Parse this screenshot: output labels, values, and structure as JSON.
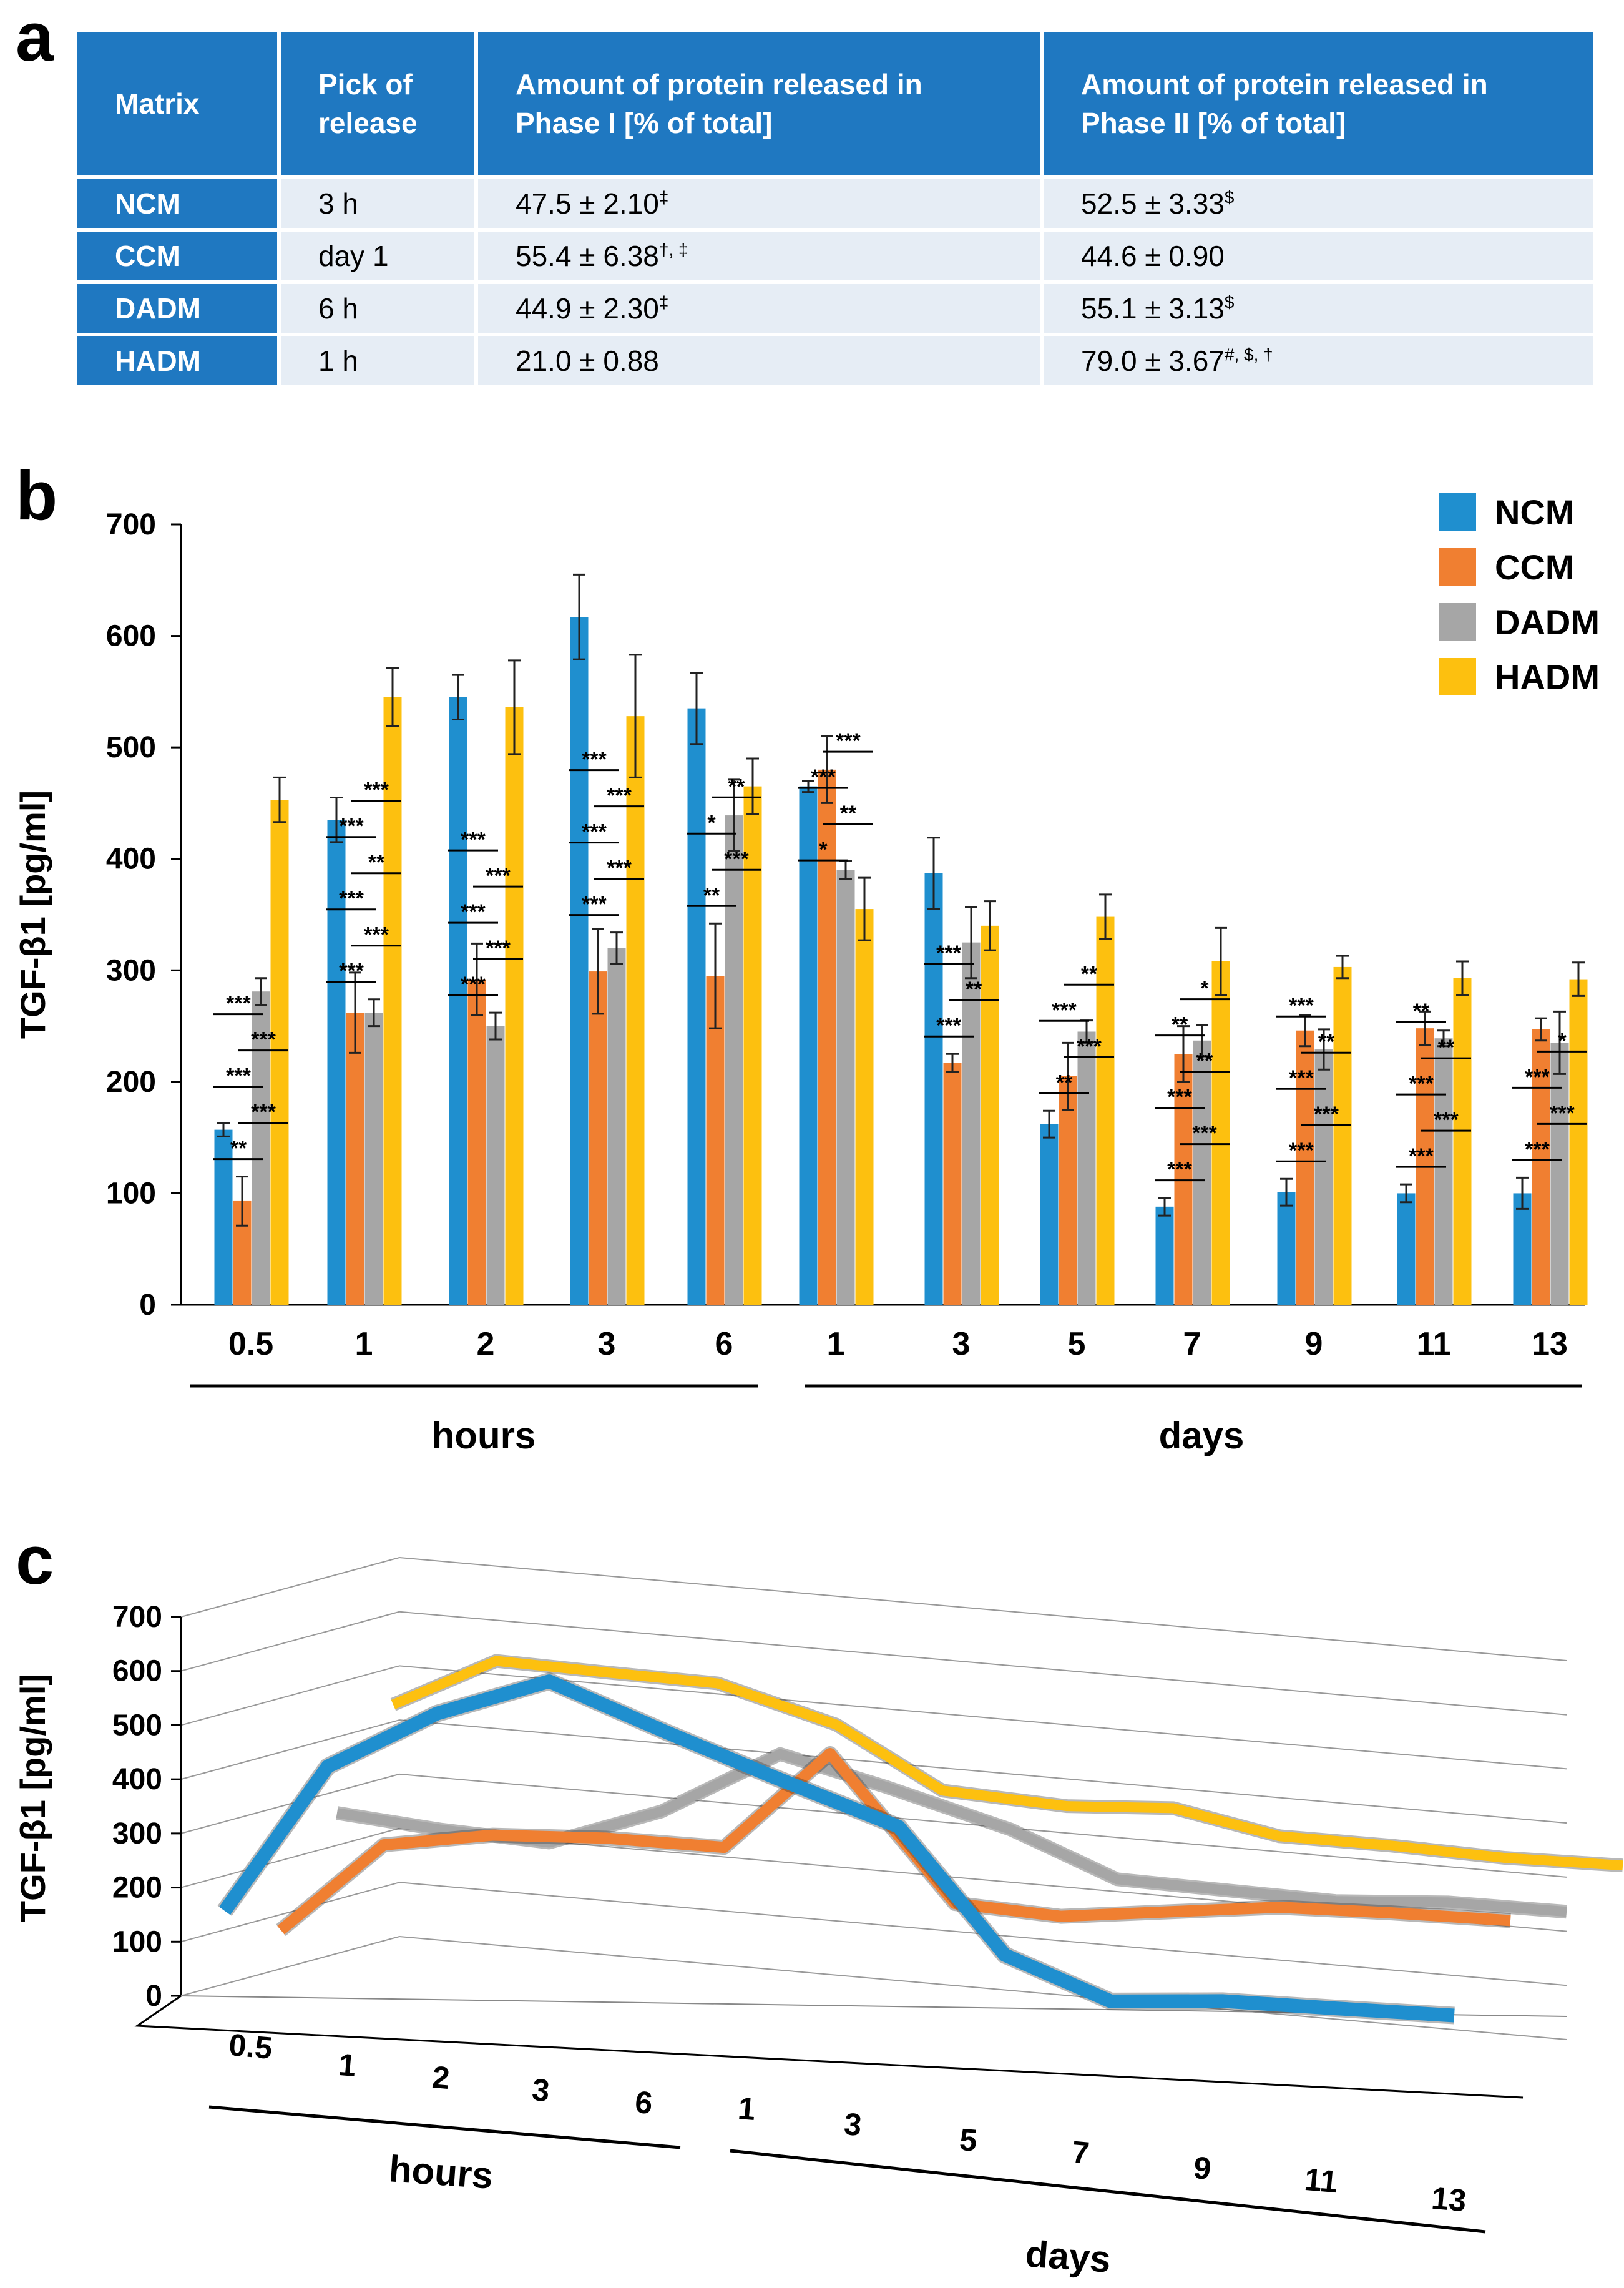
{
  "panels": {
    "a": "a",
    "b": "b",
    "c": "c"
  },
  "table": {
    "headers": [
      "Matrix",
      "Pick of\nrelease",
      "Amount of protein released in\nPhase I [% of total]",
      "Amount of protein released in\nPhase II [% of total]"
    ],
    "rows": [
      {
        "matrix": "NCM",
        "peak": "3 h",
        "phase1": "47.5 ± 2.10",
        "phase1_sup": "‡",
        "phase2": "52.5 ± 3.33",
        "phase2_sup": "$"
      },
      {
        "matrix": "CCM",
        "peak": "day 1",
        "phase1": "55.4 ± 6.38",
        "phase1_sup": "†, ‡",
        "phase2": "44.6 ± 0.90",
        "phase2_sup": ""
      },
      {
        "matrix": "DADM",
        "peak": "6 h",
        "phase1": "44.9 ± 2.30",
        "phase1_sup": "‡",
        "phase2": "55.1 ± 3.13",
        "phase2_sup": "$"
      },
      {
        "matrix": "HADM",
        "peak": "1 h",
        "phase1": "21.0 ± 0.88",
        "phase1_sup": "",
        "phase2": "79.0 ± 3.67",
        "phase2_sup": "#, $, †"
      }
    ]
  },
  "chart_data": [
    {
      "type": "bar",
      "ylabel": "TGF-β1 [pg/ml]",
      "ylim": [
        0,
        700
      ],
      "yticks": [
        0,
        100,
        200,
        300,
        400,
        500,
        600,
        700
      ],
      "categories": [
        "0.5",
        "1",
        "2",
        "3",
        "6",
        "1",
        "3",
        "5",
        "7",
        "9",
        "11",
        "13"
      ],
      "group_labels": [
        "hours",
        "days"
      ],
      "legend_position": "top-right",
      "series": [
        {
          "name": "NCM",
          "color": "#1f8fcf",
          "values": [
            157,
            435,
            545,
            617,
            535,
            465,
            387,
            162,
            88,
            101,
            100,
            100
          ],
          "errors": [
            6,
            20,
            20,
            38,
            32,
            5,
            32,
            12,
            8,
            12,
            8,
            14
          ]
        },
        {
          "name": "CCM",
          "color": "#f07f31",
          "values": [
            93,
            262,
            292,
            299,
            295,
            480,
            217,
            205,
            225,
            246,
            248,
            247
          ],
          "errors": [
            22,
            36,
            32,
            38,
            47,
            30,
            8,
            30,
            25,
            14,
            15,
            10
          ]
        },
        {
          "name": "DADM",
          "color": "#a6a6a6",
          "values": [
            281,
            262,
            250,
            320,
            439,
            390,
            325,
            245,
            237,
            229,
            239,
            235
          ],
          "errors": [
            12,
            12,
            12,
            14,
            32,
            8,
            32,
            10,
            14,
            18,
            7,
            28
          ]
        },
        {
          "name": "HADM",
          "color": "#fdc00f",
          "values": [
            453,
            545,
            536,
            528,
            465,
            355,
            340,
            348,
            308,
            303,
            293,
            292
          ],
          "errors": [
            20,
            26,
            42,
            55,
            25,
            28,
            22,
            20,
            30,
            10,
            15,
            15
          ]
        }
      ],
      "significance": [
        [
          "**",
          "***",
          "***",
          "***",
          "***"
        ],
        [
          "***",
          "***",
          "***",
          "**",
          "***",
          "***"
        ],
        [
          "***",
          "***",
          "***",
          "***",
          "***"
        ],
        [
          "***",
          "***",
          "***",
          "***",
          "***"
        ],
        [
          "**",
          "***",
          "*",
          "**"
        ],
        [
          "*",
          "**",
          "***",
          "***"
        ],
        [
          "***",
          "**",
          "***"
        ],
        [
          "**",
          "***",
          "***",
          "**"
        ],
        [
          "***",
          "***",
          "***",
          "**",
          "**",
          "*"
        ],
        [
          "***",
          "***",
          "***",
          "**",
          "***"
        ],
        [
          "***",
          "***",
          "***",
          "**",
          "**"
        ],
        [
          "***",
          "***",
          "***",
          "*"
        ]
      ]
    },
    {
      "type": "line",
      "projection": "3d",
      "ylabel": "TGF-β1 [pg/ml]",
      "ylim": [
        0,
        700
      ],
      "yticks": [
        0,
        100,
        200,
        300,
        400,
        500,
        600,
        700
      ],
      "categories": [
        "0.5",
        "1",
        "2",
        "3",
        "6",
        "1",
        "3",
        "5",
        "7",
        "9",
        "11",
        "13"
      ],
      "group_labels": [
        "hours",
        "days"
      ],
      "series": [
        {
          "name": "NCM",
          "color": "#1f8fcf",
          "values": [
            157,
            435,
            545,
            617,
            535,
            465,
            387,
            162,
            88,
            101,
            100,
            100
          ]
        },
        {
          "name": "CCM",
          "color": "#f07f31",
          "values": [
            93,
            262,
            292,
            299,
            295,
            480,
            217,
            205,
            225,
            246,
            248,
            247
          ]
        },
        {
          "name": "DADM",
          "color": "#a6a6a6",
          "values": [
            281,
            262,
            250,
            320,
            439,
            390,
            325,
            245,
            237,
            229,
            239,
            235
          ]
        },
        {
          "name": "HADM",
          "color": "#fdc00f",
          "values": [
            453,
            545,
            536,
            528,
            465,
            355,
            340,
            348,
            308,
            303,
            293,
            292
          ]
        }
      ]
    }
  ]
}
